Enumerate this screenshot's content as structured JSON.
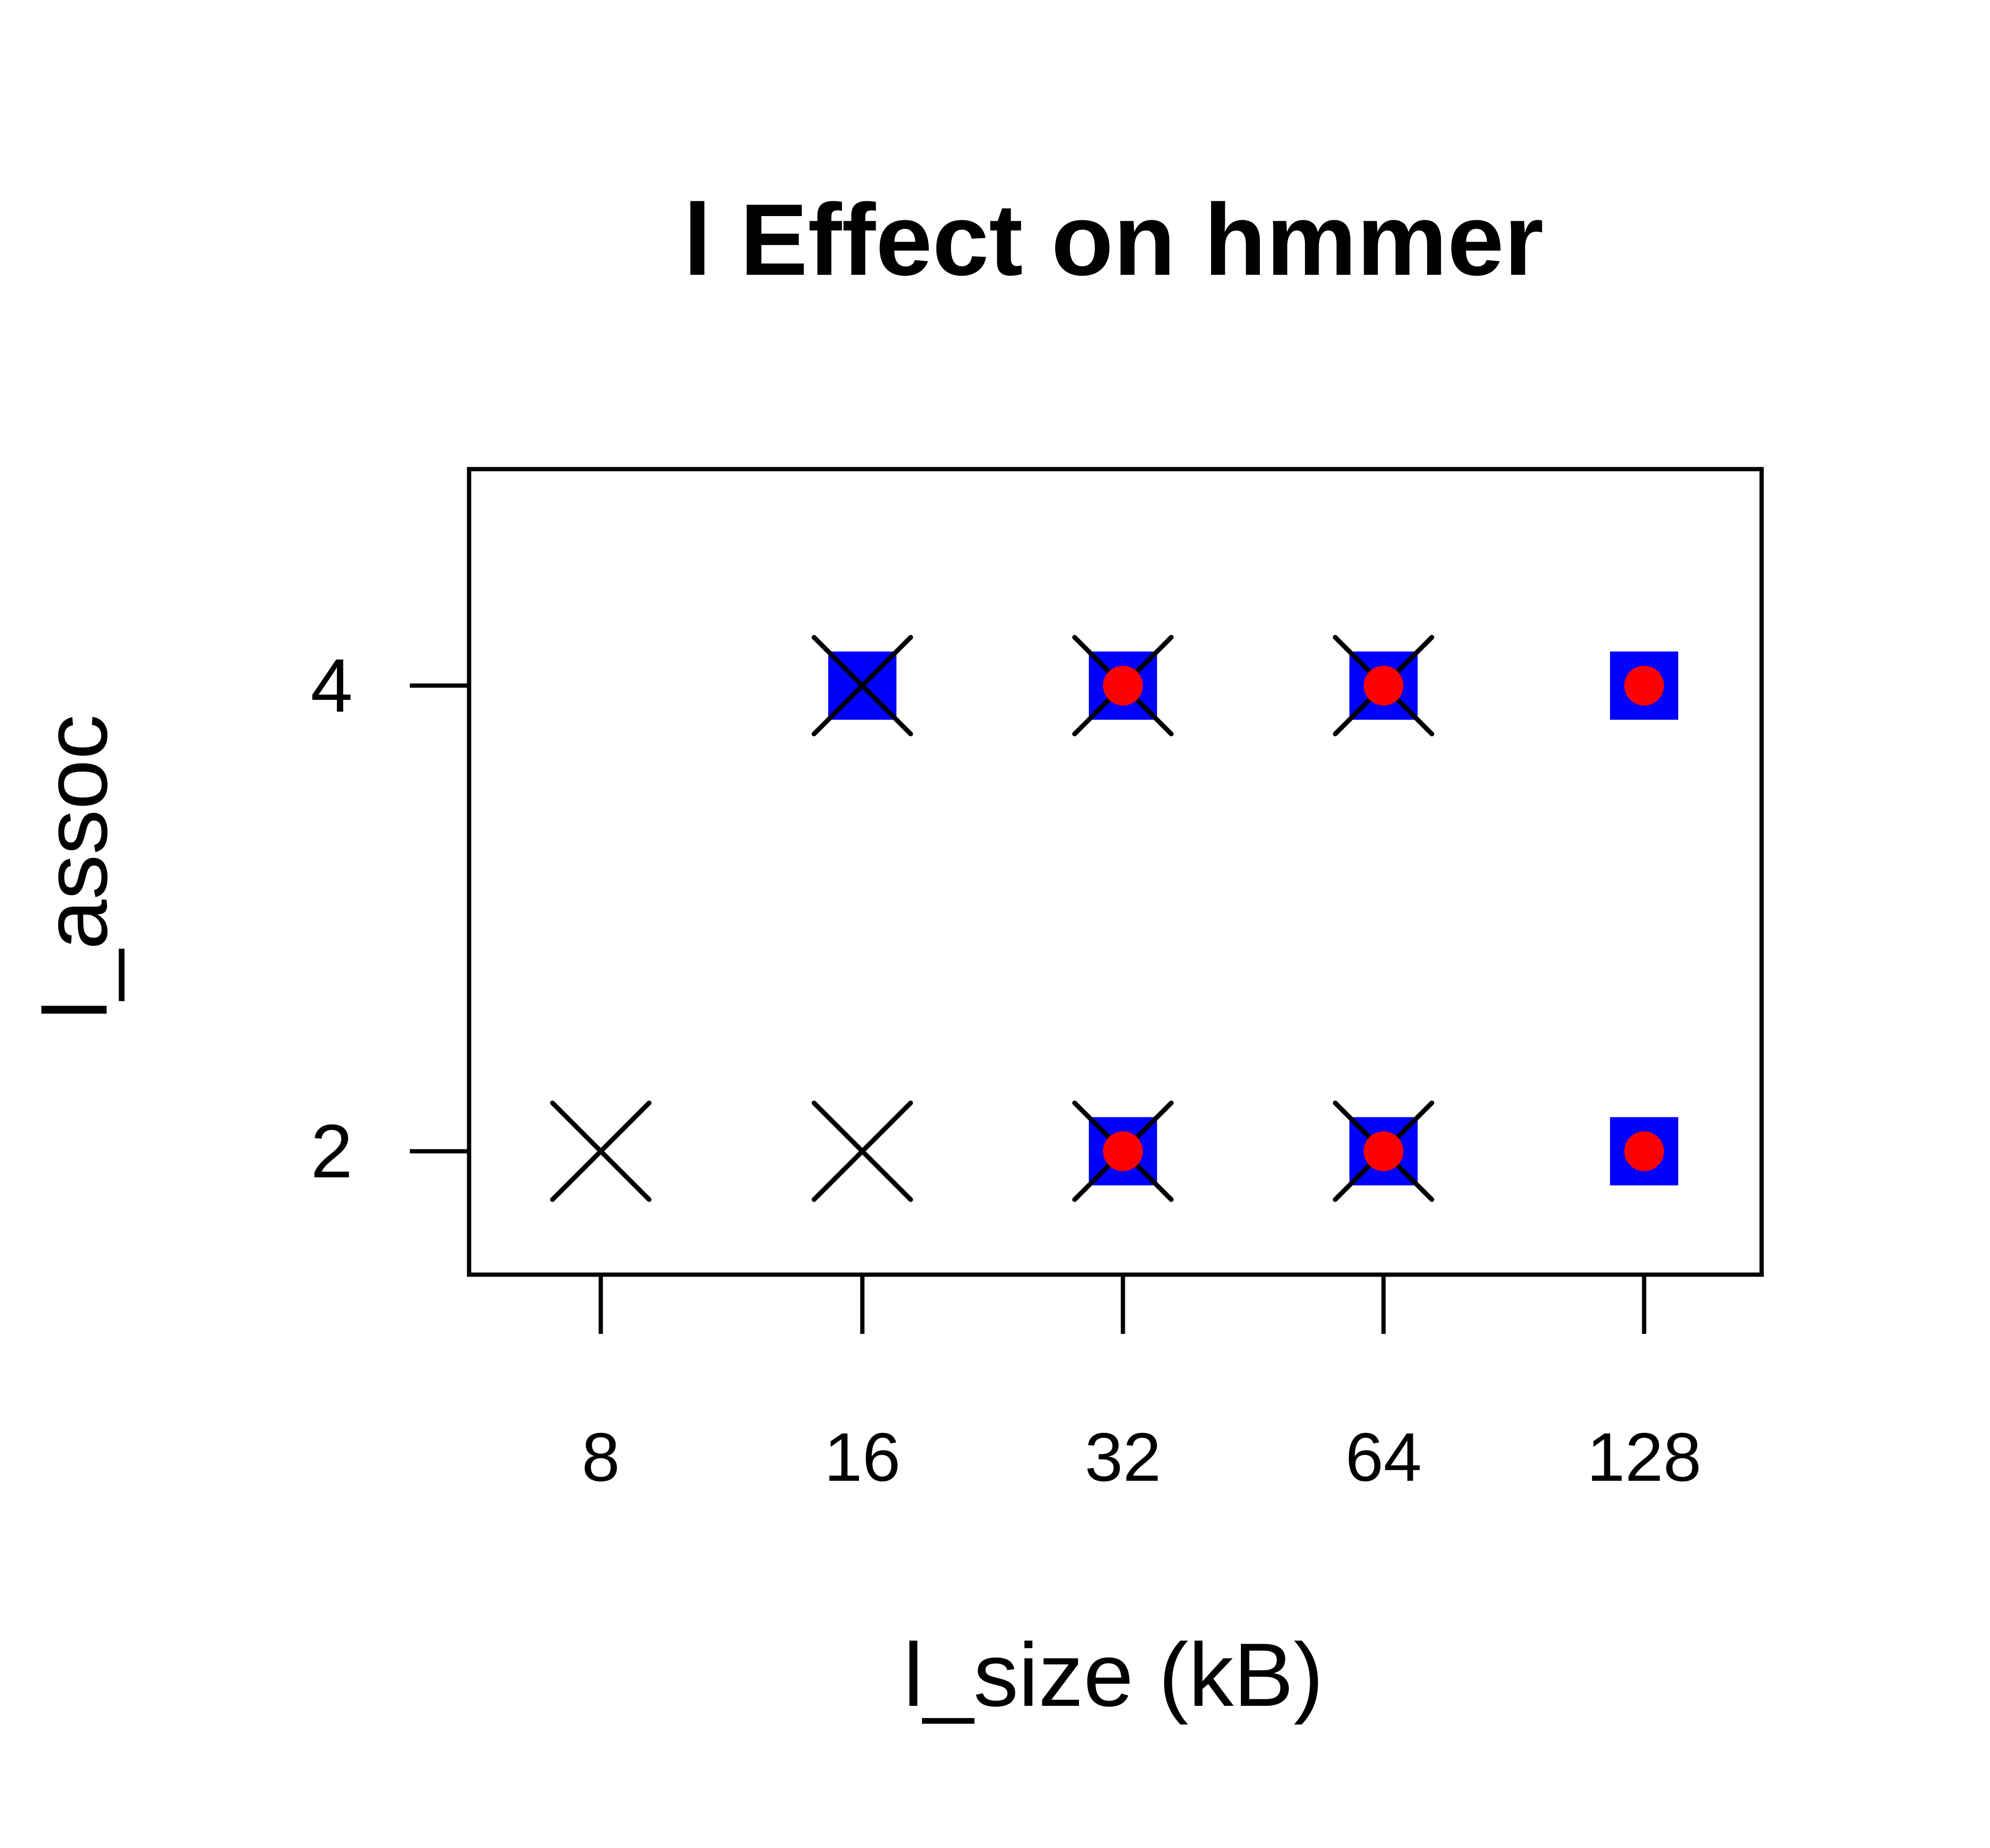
{
  "chart_data": {
    "type": "scatter",
    "title": "l Effect on hmmer",
    "xlabel": "l_size (kB)",
    "ylabel": "l_assoc",
    "x_categories": [
      "8",
      "16",
      "32",
      "64",
      "128"
    ],
    "y_ticks": [
      "2",
      "4"
    ],
    "ylim": [
      1.47,
      4.93
    ],
    "grid": false,
    "legend": "none",
    "series": [
      {
        "marker": "x",
        "color": "#000000",
        "points": [
          {
            "x": "8",
            "y": 2
          },
          {
            "x": "16",
            "y": 2
          },
          {
            "x": "32",
            "y": 2
          },
          {
            "x": "64",
            "y": 2
          },
          {
            "x": "16",
            "y": 4
          },
          {
            "x": "32",
            "y": 4
          },
          {
            "x": "64",
            "y": 4
          }
        ]
      },
      {
        "marker": "square",
        "color": "#0000ff",
        "points": [
          {
            "x": "32",
            "y": 2
          },
          {
            "x": "64",
            "y": 2
          },
          {
            "x": "128",
            "y": 2
          },
          {
            "x": "16",
            "y": 4
          },
          {
            "x": "32",
            "y": 4
          },
          {
            "x": "64",
            "y": 4
          },
          {
            "x": "128",
            "y": 4
          }
        ]
      },
      {
        "marker": "circle",
        "color": "#ff0000",
        "points": [
          {
            "x": "32",
            "y": 2
          },
          {
            "x": "64",
            "y": 2
          },
          {
            "x": "128",
            "y": 2
          },
          {
            "x": "32",
            "y": 4
          },
          {
            "x": "64",
            "y": 4
          },
          {
            "x": "128",
            "y": 4
          }
        ]
      }
    ]
  }
}
